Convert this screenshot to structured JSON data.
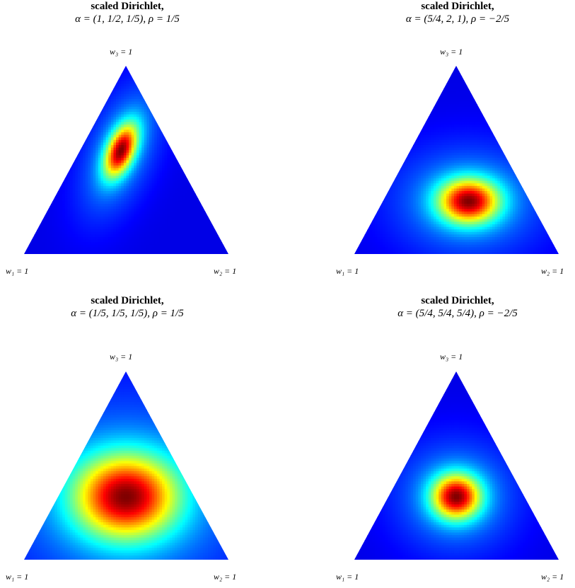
{
  "chart_data": [
    {
      "type": "heatmap",
      "title": "scaled Dirichlet,",
      "subtitle": "α = (1, 1/2, 1/5), ρ = 1/5",
      "alpha": [
        1,
        0.5,
        0.2
      ],
      "rho": 0.2,
      "vertex_labels": {
        "w1": "w₁ = 1",
        "w2": "w₂ = 1",
        "w3": "w₃ = 1"
      },
      "colormap": "jet",
      "mode": [
        0.25,
        0.2,
        0.55
      ]
    },
    {
      "type": "heatmap",
      "title": "scaled Dirichlet,",
      "subtitle": "α = (5/4, 2, 1), ρ = −2/5",
      "alpha": [
        1.25,
        2,
        1
      ],
      "rho": -0.4,
      "vertex_labels": {
        "w1": "w₁ = 1",
        "w2": "w₂ = 1",
        "w3": "w₃ = 1"
      },
      "colormap": "jet",
      "mode": [
        0.3,
        0.42,
        0.28
      ]
    },
    {
      "type": "heatmap",
      "title": "scaled Dirichlet,",
      "subtitle": "α = (1/5, 1/5, 1/5), ρ = 1/5",
      "alpha": [
        0.2,
        0.2,
        0.2
      ],
      "rho": 0.2,
      "vertex_labels": {
        "w1": "w₁ = 1",
        "w2": "w₂ = 1",
        "w3": "w₃ = 1"
      },
      "colormap": "jet",
      "mode": [
        0.333,
        0.333,
        0.333
      ]
    },
    {
      "type": "heatmap",
      "title": "scaled Dirichlet,",
      "subtitle": "α = (5/4, 5/4, 5/4), ρ = −2/5",
      "alpha": [
        1.25,
        1.25,
        1.25
      ],
      "rho": -0.4,
      "vertex_labels": {
        "w1": "w₁ = 1",
        "w2": "w₂ = 1",
        "w3": "w₃ = 1"
      },
      "colormap": "jet",
      "mode": [
        0.333,
        0.333,
        0.333
      ]
    }
  ]
}
